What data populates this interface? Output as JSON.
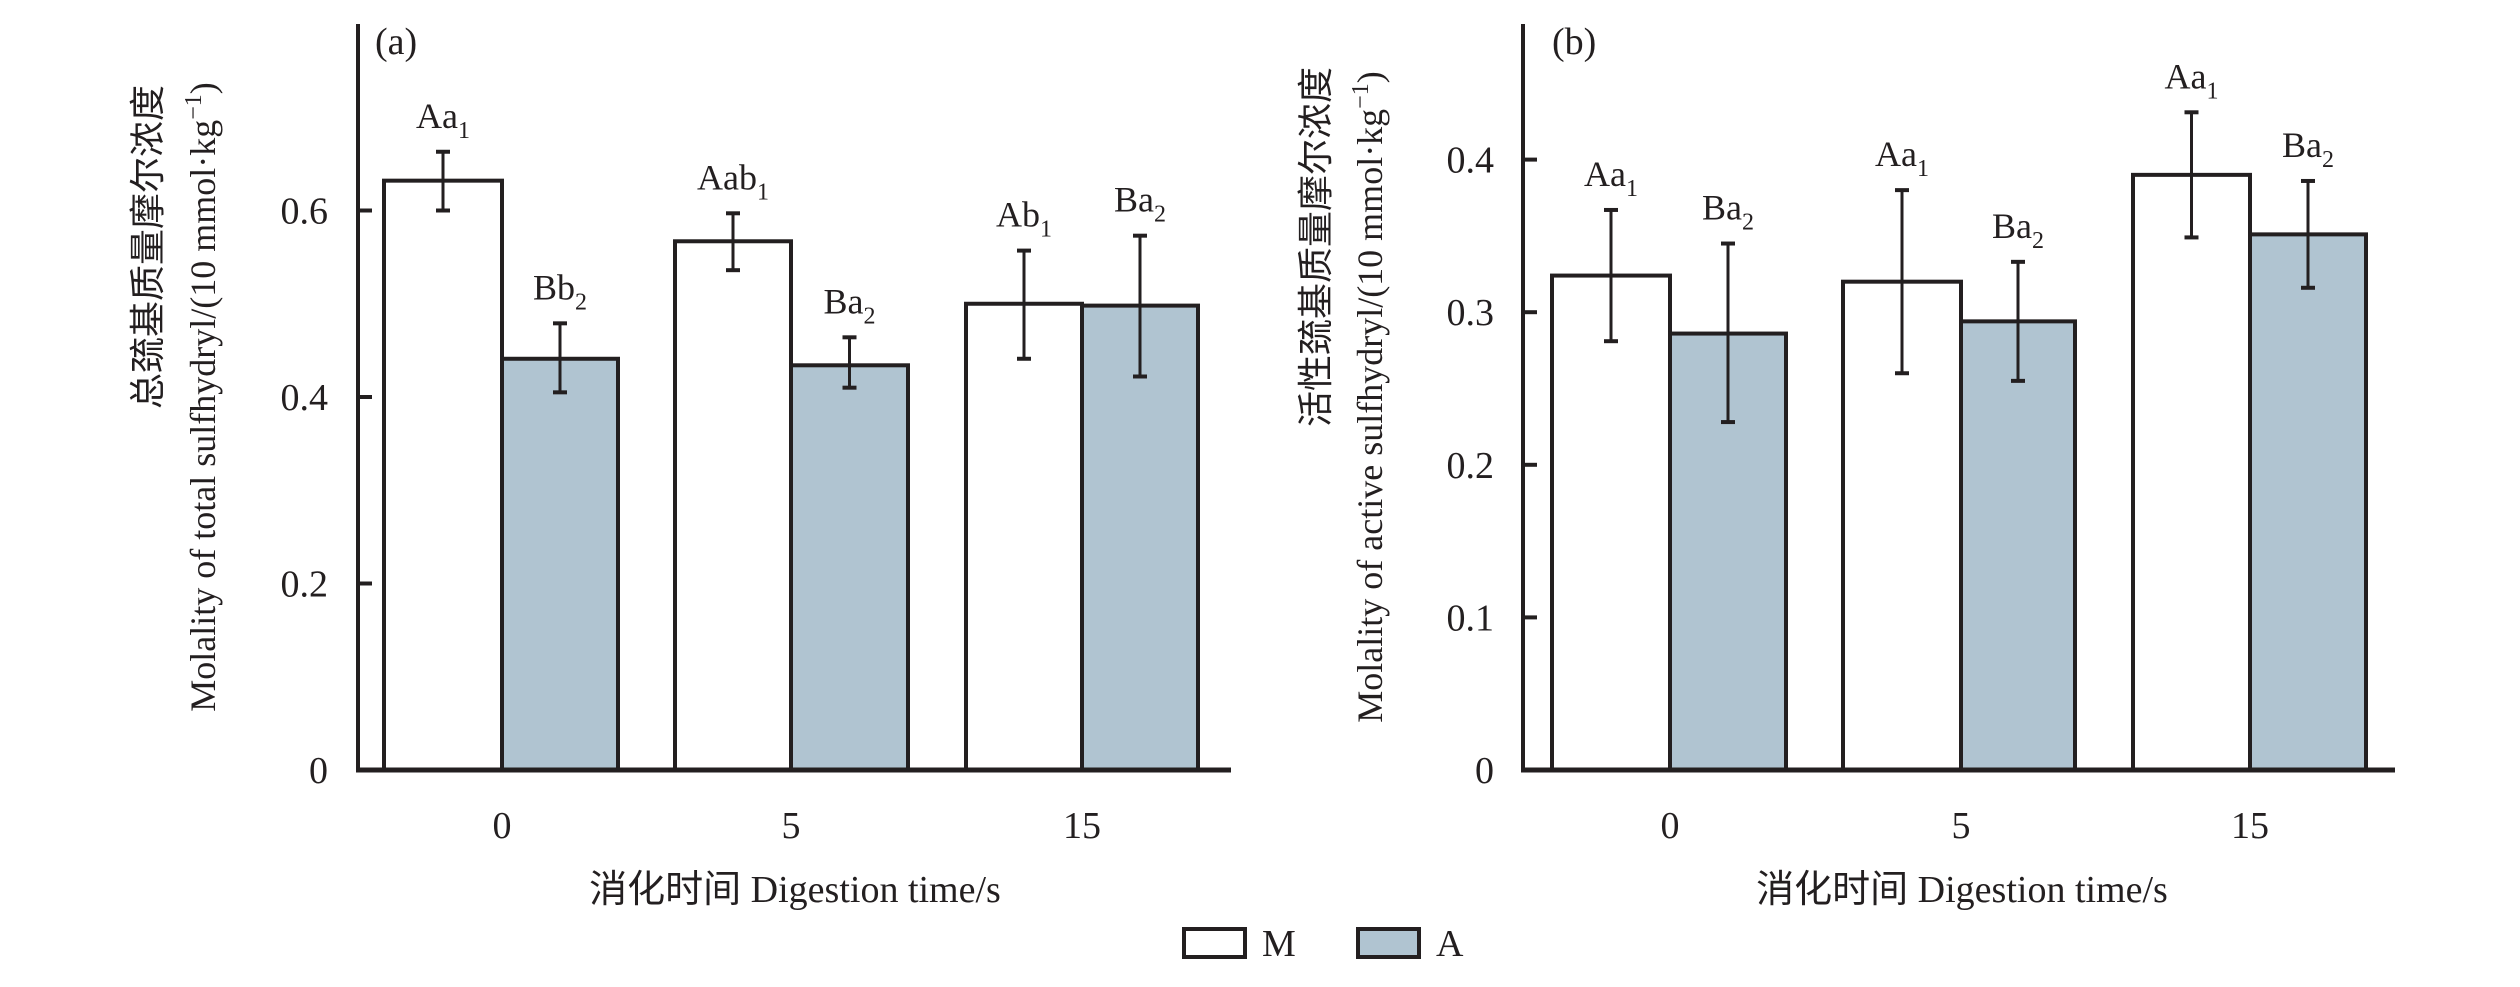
{
  "chart_data": [
    {
      "type": "bar",
      "panel_label": "(a)",
      "ylabel_cn": "总巯基质量摩尔浓度",
      "ylabel_en": "Molality of  total sulfhydryl/(10 mmol·kg",
      "ylabel_sup": "−1",
      "ylabel_close": ")",
      "xlabel": "消化时间 Digestion time/s",
      "categories": [
        "0",
        "5",
        "15"
      ],
      "ylim": [
        0,
        0.78
      ],
      "yticks": [
        0,
        0.2,
        0.4,
        0.6
      ],
      "ytick_labels": [
        "0",
        "0.2",
        "0.4",
        "0.6"
      ],
      "grid": false,
      "series": [
        {
          "name": "M",
          "values": [
            0.632,
            0.567,
            0.5
          ],
          "err_upper": [
            0.663,
            0.597,
            0.557
          ],
          "err_lower": [
            0.6,
            0.536,
            0.441
          ],
          "labels": [
            {
              "main": "Aa",
              "sub": "1"
            },
            {
              "main": "Aab",
              "sub": "1"
            },
            {
              "main": "Ab",
              "sub": "1"
            }
          ]
        },
        {
          "name": "A",
          "values": [
            0.441,
            0.434,
            0.498
          ],
          "err_upper": [
            0.479,
            0.464,
            0.573
          ],
          "err_lower": [
            0.405,
            0.41,
            0.422
          ],
          "labels": [
            {
              "main": "Bb",
              "sub": "2"
            },
            {
              "main": "Ba",
              "sub": "2"
            },
            {
              "main": "Ba",
              "sub": "2"
            }
          ]
        }
      ]
    },
    {
      "type": "bar",
      "panel_label": "(b)",
      "ylabel_cn": "活性巯基质量摩尔浓度",
      "ylabel_en": "Molality of  active sulfhydryl/(10 mmol·kg",
      "ylabel_sup": "−1",
      "ylabel_close": ")",
      "xlabel": "消化时间 Digestion time/s",
      "categories": [
        "0",
        "5",
        "15"
      ],
      "ylim": [
        0,
        0.485
      ],
      "yticks": [
        0,
        0.1,
        0.2,
        0.3,
        0.4
      ],
      "ytick_labels": [
        "0",
        "0.1",
        "0.2",
        "0.3",
        "0.4"
      ],
      "grid": false,
      "series": [
        {
          "name": "M",
          "values": [
            0.324,
            0.32,
            0.39
          ],
          "err_upper": [
            0.367,
            0.38,
            0.431
          ],
          "err_lower": [
            0.281,
            0.26,
            0.349
          ],
          "labels": [
            {
              "main": "Aa",
              "sub": "1"
            },
            {
              "main": "Aa",
              "sub": "1"
            },
            {
              "main": "Aa",
              "sub": "1"
            }
          ]
        },
        {
          "name": "A",
          "values": [
            0.286,
            0.294,
            0.351
          ],
          "err_upper": [
            0.345,
            0.333,
            0.386
          ],
          "err_lower": [
            0.228,
            0.255,
            0.316
          ],
          "labels": [
            {
              "main": "Ba",
              "sub": "2"
            },
            {
              "main": "Ba",
              "sub": "2"
            },
            {
              "main": "Ba",
              "sub": "2"
            }
          ]
        }
      ]
    }
  ],
  "legend": {
    "placement": "bottom-center",
    "items": [
      {
        "label": "M",
        "color": "#ffffff"
      },
      {
        "label": "A",
        "color": "#b0c4d1"
      }
    ]
  },
  "colors": {
    "stroke": "#231f20",
    "M": "#ffffff",
    "A": "#b0c4d1"
  }
}
